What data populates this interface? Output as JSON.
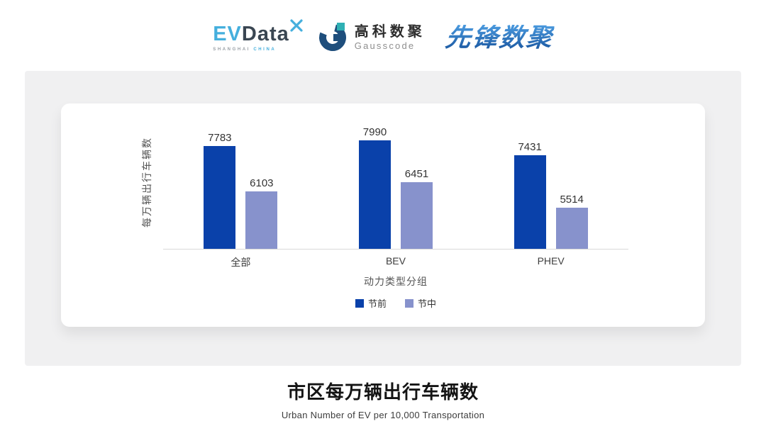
{
  "header": {
    "logos": {
      "evdata": {
        "primary": "EV",
        "secondary": "Data",
        "sub_left": "SHANGHAI",
        "sub_right": "CHINA"
      },
      "gausscode": {
        "cn": "高科数聚",
        "en": "Gausscode"
      },
      "pioneer": {
        "cn": "先锋数聚"
      }
    }
  },
  "chart_data": {
    "type": "bar",
    "title": "市区每万辆出行车辆数",
    "subtitle": "Urban Number of EV per 10,000 Transportation",
    "categories": [
      "全部",
      "BEV",
      "PHEV"
    ],
    "series": [
      {
        "name": "节前",
        "color": "#0A41AA",
        "values": [
          7783,
          7990,
          7431
        ]
      },
      {
        "name": "节中",
        "color": "#8792CC",
        "values": [
          6103,
          6451,
          5514
        ]
      }
    ],
    "xlabel": "动力类型分组",
    "ylabel": "每万辆出行车辆数",
    "ylim": [
      4000,
      8950
    ],
    "y_ticks_visible": false,
    "grid": false,
    "legend_position": "bottom",
    "axis_line_color": "#D9D9D9",
    "value_labels_visible": true
  }
}
